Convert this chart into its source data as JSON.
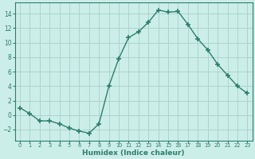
{
  "x": [
    0,
    1,
    2,
    3,
    4,
    5,
    6,
    7,
    8,
    9,
    10,
    11,
    12,
    13,
    14,
    15,
    16,
    17,
    18,
    19,
    20,
    21,
    22,
    23
  ],
  "y": [
    1.0,
    0.2,
    -0.8,
    -0.8,
    -1.2,
    -1.8,
    -2.2,
    -2.5,
    -1.2,
    4.0,
    7.8,
    10.7,
    11.5,
    12.8,
    14.5,
    14.2,
    14.3,
    12.5,
    10.5,
    9.0,
    7.0,
    5.5,
    4.0,
    3.0
  ],
  "line_color": "#2e7d6e",
  "marker": "+",
  "marker_size": 4,
  "bg_color": "#cceee8",
  "grid_color": "#aad4ce",
  "xlabel": "Humidex (Indice chaleur)",
  "xlim": [
    -0.5,
    23.5
  ],
  "ylim": [
    -3.5,
    15.5
  ],
  "yticks": [
    -2,
    0,
    2,
    4,
    6,
    8,
    10,
    12,
    14
  ],
  "xtick_labels": [
    "0",
    "1",
    "2",
    "3",
    "4",
    "5",
    "6",
    "7",
    "8",
    "9",
    "10",
    "11",
    "12",
    "13",
    "14",
    "15",
    "16",
    "17",
    "18",
    "19",
    "20",
    "21",
    "22",
    "23"
  ]
}
